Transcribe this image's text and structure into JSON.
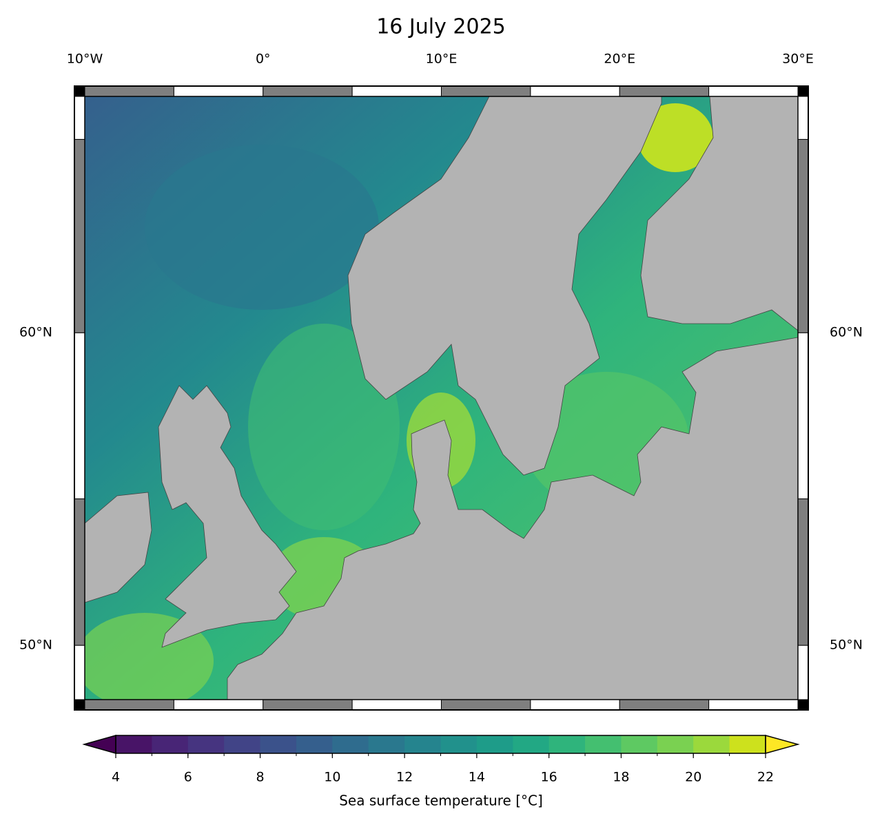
{
  "title": "16 July 2025",
  "map": {
    "type": "map",
    "projection": "mercator",
    "xlim": [
      -10,
      30
    ],
    "ylim": [
      48,
      66
    ],
    "xticks": [
      {
        "value": -10,
        "label": "10°W"
      },
      {
        "value": 0,
        "label": "0°"
      },
      {
        "value": 10,
        "label": "10°E"
      },
      {
        "value": 20,
        "label": "20°E"
      },
      {
        "value": 30,
        "label": "30°E"
      }
    ],
    "yticks": [
      {
        "value": 50,
        "label": "50°N"
      },
      {
        "value": 60,
        "label": "60°N"
      }
    ],
    "land_color": "#b3b3b3"
  },
  "colorbar": {
    "label": "Sea surface temperature [°C]",
    "levels": [
      4,
      5,
      6,
      7,
      8,
      9,
      10,
      11,
      12,
      13,
      14,
      15,
      16,
      17,
      18,
      19,
      20,
      21,
      22
    ],
    "colors": [
      "#481467",
      "#482576",
      "#463480",
      "#414487",
      "#3b528b",
      "#355f8d",
      "#2f6c8e",
      "#2a788e",
      "#25848e",
      "#21918c",
      "#1e9c89",
      "#22a884",
      "#2fb47c",
      "#44bf70",
      "#5ec962",
      "#7ad151",
      "#9bd93c",
      "#cde11d"
    ],
    "under_color": "#440154",
    "over_color": "#fde725",
    "ticks": [
      4,
      6,
      8,
      10,
      12,
      14,
      16,
      18,
      20,
      22
    ]
  }
}
